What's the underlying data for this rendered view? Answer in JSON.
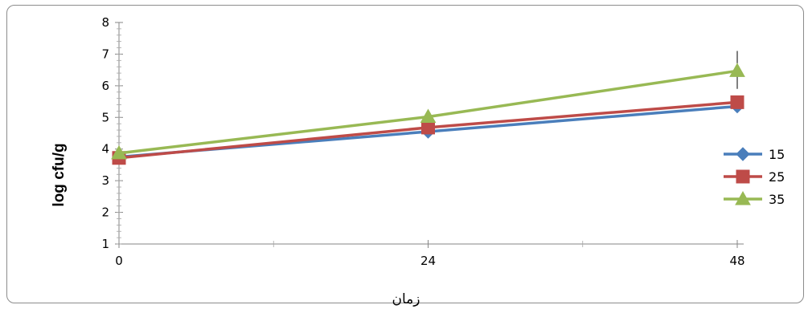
{
  "chart_data": {
    "type": "line",
    "title": "",
    "xlabel": "زمان",
    "ylabel": "log cfu/g",
    "x": [
      0,
      24,
      48
    ],
    "x_tick_labels": [
      "0",
      "24",
      "48"
    ],
    "xlim": [
      0,
      48
    ],
    "ylim": [
      1,
      8
    ],
    "y_ticks": [
      1,
      2,
      3,
      4,
      5,
      6,
      7,
      8
    ],
    "grid": false,
    "legend_position": "right",
    "series": [
      {
        "name": "15",
        "values": [
          3.75,
          4.55,
          5.35
        ],
        "color": "#4a7ebb",
        "marker": "diamond"
      },
      {
        "name": "25",
        "values": [
          3.72,
          4.68,
          5.48
        ],
        "color": "#be4b48",
        "marker": "square"
      },
      {
        "name": "35",
        "values": [
          3.87,
          5.02,
          6.47
        ],
        "color": "#98b954",
        "marker": "triangle"
      }
    ],
    "error_bars": [
      {
        "series": "35",
        "x": 48,
        "low": 5.9,
        "high": 7.1
      }
    ]
  }
}
